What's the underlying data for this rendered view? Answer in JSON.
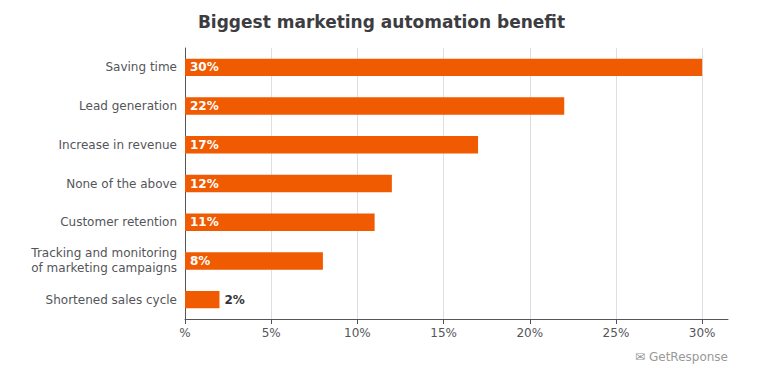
{
  "chart_data": {
    "type": "bar",
    "orientation": "horizontal",
    "title": "Biggest marketing automation benefit",
    "categories": [
      "Shortened sales cycle",
      "Tracking and monitoring\nof marketing campaigns",
      "Customer retention",
      "None of the above",
      "Increase in revenue",
      "Lead generation",
      "Saving time"
    ],
    "values": [
      2,
      8,
      11,
      12,
      17,
      22,
      30
    ],
    "value_labels": [
      "2%",
      "8%",
      "11%",
      "12%",
      "17%",
      "22%",
      "30%"
    ],
    "data_labels": true,
    "color": "#F05A00",
    "xlim": [
      0,
      31.5
    ],
    "xticks": [
      {
        "value": 0,
        "label": "%"
      },
      {
        "value": 5,
        "label": "5%"
      },
      {
        "value": 10,
        "label": "10%"
      },
      {
        "value": 15,
        "label": "15%"
      },
      {
        "value": 20,
        "label": "20%"
      },
      {
        "value": 25,
        "label": "25%"
      },
      {
        "value": 30,
        "label": "30%"
      }
    ],
    "grid": true,
    "annotation": "✉ GetResponse"
  }
}
